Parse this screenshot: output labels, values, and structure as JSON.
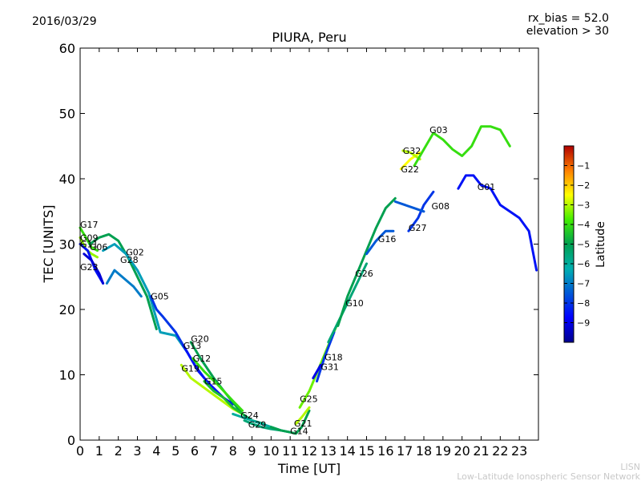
{
  "header": {
    "date": "2016/03/29",
    "bias": "rx_bias = 52.0",
    "elevation": "elevation > 30"
  },
  "footer": {
    "line1": "LISN",
    "line2": "Low-Latitude Ionospheric Sensor Network"
  },
  "chart_data": {
    "type": "line",
    "title": "PIURA, Peru",
    "xlabel": "Time [UT]",
    "ylabel": "TEC [UNITS]",
    "xlim": [
      0,
      24
    ],
    "ylim": [
      0,
      60
    ],
    "x_ticks": [
      0,
      1,
      2,
      3,
      4,
      5,
      6,
      7,
      8,
      9,
      10,
      11,
      12,
      13,
      14,
      15,
      16,
      17,
      18,
      19,
      20,
      21,
      22,
      23
    ],
    "y_ticks": [
      0,
      10,
      20,
      30,
      40,
      50,
      60
    ],
    "grid": false,
    "colorbar": {
      "label": "Latitude",
      "range": [
        -10,
        0
      ],
      "ticks": [
        -1,
        -2,
        -3,
        -4,
        -5,
        -6,
        -7,
        -8,
        -9
      ]
    },
    "series": [
      {
        "name": "G17",
        "lat": -4.0,
        "label_at": [
          0.0,
          33.0
        ],
        "points": [
          [
            0.0,
            32.5
          ],
          [
            0.3,
            31.0
          ],
          [
            0.6,
            29.5
          ],
          [
            0.9,
            29.0
          ]
        ]
      },
      {
        "name": "G09",
        "lat": -3.2,
        "label_at": [
          0.0,
          31.0
        ],
        "points": [
          [
            0.0,
            31.0
          ],
          [
            0.3,
            29.2
          ],
          [
            0.6,
            28.5
          ],
          [
            0.9,
            28.0
          ]
        ]
      },
      {
        "name": "G11",
        "lat": -8.5,
        "label_at": [
          0.0,
          30.0
        ],
        "points": [
          [
            0.0,
            30.0
          ],
          [
            0.4,
            29.0
          ],
          [
            0.8,
            26.0
          ],
          [
            1.2,
            24.0
          ]
        ]
      },
      {
        "name": "G06",
        "lat": -5.0,
        "label_at": [
          0.5,
          29.6
        ],
        "points": [
          [
            0.5,
            30.0
          ],
          [
            1.0,
            31.0
          ],
          [
            1.5,
            31.5
          ],
          [
            2.0,
            30.5
          ],
          [
            2.5,
            28.0
          ],
          [
            3.0,
            25.0
          ],
          [
            3.5,
            22.0
          ],
          [
            4.0,
            17.0
          ]
        ]
      },
      {
        "name": "G02",
        "lat": -6.5,
        "label_at": [
          2.4,
          28.8
        ],
        "points": [
          [
            1.2,
            29.0
          ],
          [
            1.8,
            30.0
          ],
          [
            2.4,
            28.5
          ],
          [
            3.0,
            26.0
          ],
          [
            3.6,
            22.5
          ],
          [
            4.2,
            16.5
          ],
          [
            5.0,
            16.0
          ],
          [
            5.6,
            13.5
          ]
        ]
      },
      {
        "name": "G28",
        "lat": -7.0,
        "label_at": [
          2.1,
          27.6
        ],
        "points": [
          [
            1.4,
            24.0
          ],
          [
            1.8,
            26.0
          ],
          [
            2.2,
            25.0
          ],
          [
            2.8,
            23.5
          ],
          [
            3.2,
            22.0
          ]
        ]
      },
      {
        "name": "G23",
        "lat": -9.2,
        "label_at": [
          0.0,
          26.5
        ],
        "points": [
          [
            0.2,
            28.5
          ],
          [
            0.6,
            27.5
          ],
          [
            1.0,
            25.5
          ],
          [
            1.2,
            24.0
          ]
        ]
      },
      {
        "name": "G05",
        "lat": -8.0,
        "label_at": [
          3.7,
          22.0
        ],
        "points": [
          [
            3.7,
            22.0
          ],
          [
            4.0,
            20.0
          ],
          [
            4.3,
            19.0
          ],
          [
            5.0,
            16.5
          ],
          [
            5.5,
            14.0
          ],
          [
            6.0,
            11.5
          ],
          [
            6.5,
            9.5
          ]
        ]
      },
      {
        "name": "G13",
        "lat": -8.5,
        "label_at": [
          5.4,
          14.5
        ],
        "points": [
          [
            5.4,
            14.5
          ],
          [
            5.8,
            12.5
          ],
          [
            6.2,
            10.5
          ],
          [
            6.8,
            8.5
          ],
          [
            7.5,
            6.5
          ],
          [
            8.0,
            5.5
          ]
        ]
      },
      {
        "name": "G20",
        "lat": -5.0,
        "label_at": [
          5.8,
          15.5
        ],
        "points": [
          [
            5.8,
            15.0
          ],
          [
            6.3,
            12.5
          ],
          [
            7.0,
            9.5
          ],
          [
            7.8,
            6.5
          ],
          [
            8.5,
            4.0
          ],
          [
            9.0,
            3.0
          ],
          [
            9.6,
            2.5
          ]
        ]
      },
      {
        "name": "G12",
        "lat": -4.0,
        "label_at": [
          5.9,
          12.5
        ],
        "points": [
          [
            5.9,
            12.5
          ],
          [
            6.5,
            10.5
          ],
          [
            7.2,
            8.5
          ],
          [
            8.0,
            6.0
          ],
          [
            8.5,
            4.5
          ]
        ]
      },
      {
        "name": "G19",
        "lat": -3.0,
        "label_at": [
          5.3,
          11.0
        ],
        "points": [
          [
            5.3,
            11.5
          ],
          [
            5.8,
            9.5
          ],
          [
            6.5,
            8.0
          ],
          [
            7.2,
            6.5
          ],
          [
            8.0,
            4.8
          ],
          [
            8.5,
            4.0
          ]
        ]
      },
      {
        "name": "G15",
        "lat": -4.5,
        "label_at": [
          6.5,
          9.0
        ],
        "points": [
          [
            6.5,
            9.0
          ],
          [
            7.0,
            7.5
          ],
          [
            7.5,
            6.5
          ],
          [
            8.0,
            5.0
          ],
          [
            8.5,
            4.0
          ]
        ]
      },
      {
        "name": "G24",
        "lat": -6.0,
        "label_at": [
          8.4,
          3.8
        ],
        "points": [
          [
            8.0,
            4.0
          ],
          [
            8.5,
            3.5
          ],
          [
            9.0,
            3.0
          ],
          [
            9.5,
            2.5
          ],
          [
            10.0,
            2.0
          ],
          [
            10.5,
            1.5
          ],
          [
            11.0,
            1.2
          ]
        ]
      },
      {
        "name": "G29",
        "lat": -5.5,
        "label_at": [
          8.8,
          2.4
        ],
        "points": [
          [
            8.6,
            3.0
          ],
          [
            9.0,
            2.5
          ],
          [
            9.5,
            2.0
          ],
          [
            10.0,
            1.7
          ],
          [
            10.5,
            1.5
          ]
        ]
      },
      {
        "name": "G14",
        "lat": -5.0,
        "label_at": [
          11.0,
          1.4
        ],
        "points": [
          [
            10.0,
            2.0
          ],
          [
            10.5,
            1.5
          ],
          [
            11.0,
            1.2
          ],
          [
            11.3,
            1.0
          ],
          [
            11.6,
            2.0
          ],
          [
            12.0,
            4.5
          ]
        ]
      },
      {
        "name": "G21",
        "lat": -3.0,
        "label_at": [
          11.2,
          2.6
        ],
        "points": [
          [
            11.3,
            2.5
          ],
          [
            11.6,
            3.5
          ],
          [
            12.0,
            5.0
          ]
        ]
      },
      {
        "name": "G25",
        "lat": -3.5,
        "label_at": [
          11.5,
          6.3
        ],
        "points": [
          [
            11.5,
            5.0
          ],
          [
            12.0,
            7.5
          ],
          [
            12.5,
            11.0
          ],
          [
            13.0,
            14.5
          ],
          [
            13.5,
            18.0
          ]
        ]
      },
      {
        "name": "G18",
        "lat": -8.0,
        "label_at": [
          12.8,
          12.7
        ],
        "points": [
          [
            12.4,
            9.0
          ],
          [
            12.8,
            12.7
          ],
          [
            13.3,
            16.5
          ]
        ]
      },
      {
        "name": "G31",
        "lat": -9.0,
        "label_at": [
          12.6,
          11.2
        ],
        "points": [
          [
            12.2,
            9.5
          ],
          [
            12.6,
            11.5
          ]
        ]
      },
      {
        "name": "G10",
        "lat": -5.5,
        "label_at": [
          13.9,
          21.0
        ],
        "points": [
          [
            13.0,
            15.0
          ],
          [
            13.5,
            18.0
          ],
          [
            14.0,
            21.0
          ],
          [
            14.5,
            24.0
          ],
          [
            15.0,
            27.0
          ]
        ]
      },
      {
        "name": "G26",
        "lat": -5.0,
        "label_at": [
          14.4,
          25.5
        ],
        "points": [
          [
            13.5,
            17.5
          ],
          [
            14.0,
            22.0
          ],
          [
            14.5,
            25.5
          ],
          [
            15.0,
            29.0
          ],
          [
            15.5,
            32.5
          ],
          [
            16.0,
            35.5
          ],
          [
            16.5,
            37.0
          ]
        ]
      },
      {
        "name": "G16",
        "lat": -7.5,
        "label_at": [
          15.6,
          30.8
        ],
        "points": [
          [
            15.0,
            28.5
          ],
          [
            15.5,
            30.5
          ],
          [
            16.0,
            32.0
          ],
          [
            16.4,
            32.0
          ]
        ]
      },
      {
        "name": "G27",
        "lat": -8.0,
        "label_at": [
          17.2,
          32.5
        ],
        "points": [
          [
            17.2,
            32.0
          ],
          [
            17.7,
            34.0
          ],
          [
            18.0,
            36.0
          ],
          [
            18.5,
            38.0
          ]
        ]
      },
      {
        "name": "G08",
        "lat": -7.5,
        "label_at": [
          18.4,
          35.8
        ],
        "points": [
          [
            16.5,
            36.5
          ],
          [
            17.0,
            36.0
          ],
          [
            17.5,
            35.5
          ],
          [
            18.0,
            35.0
          ]
        ]
      },
      {
        "name": "G22",
        "lat": -2.5,
        "label_at": [
          16.8,
          41.5
        ],
        "points": [
          [
            16.8,
            41.5
          ],
          [
            17.3,
            43.0
          ],
          [
            17.8,
            44.0
          ]
        ]
      },
      {
        "name": "G32",
        "lat": -3.0,
        "label_at": [
          16.9,
          44.3
        ],
        "points": [
          [
            16.9,
            44.3
          ],
          [
            17.3,
            44.0
          ],
          [
            17.8,
            43.0
          ]
        ]
      },
      {
        "name": "G03",
        "lat": -4.0,
        "label_at": [
          18.3,
          47.5
        ],
        "points": [
          [
            17.5,
            42.0
          ],
          [
            18.0,
            44.5
          ],
          [
            18.5,
            47.0
          ],
          [
            19.0,
            46.0
          ],
          [
            19.5,
            44.5
          ],
          [
            20.0,
            43.5
          ],
          [
            20.5,
            45.0
          ],
          [
            21.0,
            48.0
          ],
          [
            21.5,
            48.0
          ],
          [
            22.0,
            47.5
          ],
          [
            22.5,
            45.0
          ]
        ]
      },
      {
        "name": "G01",
        "lat": -8.5,
        "label_at": [
          20.8,
          38.8
        ],
        "points": [
          [
            19.8,
            38.5
          ],
          [
            20.2,
            40.5
          ],
          [
            20.6,
            40.5
          ],
          [
            21.0,
            39.0
          ],
          [
            21.5,
            38.5
          ],
          [
            22.0,
            36.0
          ],
          [
            22.5,
            35.0
          ],
          [
            23.0,
            34.0
          ],
          [
            23.5,
            32.0
          ],
          [
            23.9,
            26.0
          ]
        ]
      }
    ]
  }
}
